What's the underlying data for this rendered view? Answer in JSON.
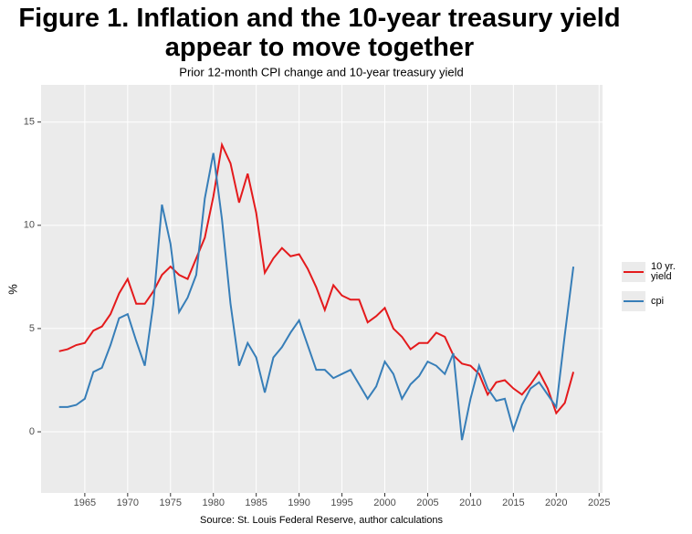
{
  "chart_data": {
    "type": "line",
    "title": "Figure 1. Inflation and the 10-year treasury yield\nappear to move together",
    "subtitle": "Prior 12-month CPI change and 10-year treasury yield",
    "y_label": "%",
    "caption": "Source: St. Louis Federal Reserve, author calculations",
    "x": [
      1962,
      1963,
      1964,
      1965,
      1966,
      1967,
      1968,
      1969,
      1970,
      1971,
      1972,
      1973,
      1974,
      1975,
      1976,
      1977,
      1978,
      1979,
      1980,
      1981,
      1982,
      1983,
      1984,
      1985,
      1986,
      1987,
      1988,
      1989,
      1990,
      1991,
      1992,
      1993,
      1994,
      1995,
      1996,
      1997,
      1998,
      1999,
      2000,
      2001,
      2002,
      2003,
      2004,
      2005,
      2006,
      2007,
      2008,
      2009,
      2010,
      2011,
      2012,
      2013,
      2014,
      2015,
      2016,
      2017,
      2018,
      2019,
      2020,
      2021,
      2022
    ],
    "series": [
      {
        "name": "10 yr.\nyield",
        "color": "#e41a1c",
        "values": [
          3.9,
          4.0,
          4.2,
          4.3,
          4.9,
          5.1,
          5.7,
          6.7,
          7.4,
          6.2,
          6.2,
          6.8,
          7.6,
          8.0,
          7.6,
          7.4,
          8.4,
          9.4,
          11.4,
          13.9,
          13.0,
          11.1,
          12.5,
          10.6,
          7.7,
          8.4,
          8.9,
          8.5,
          8.6,
          7.9,
          7.0,
          5.9,
          7.1,
          6.6,
          6.4,
          6.4,
          5.3,
          5.6,
          6.0,
          5.0,
          4.6,
          4.0,
          4.3,
          4.3,
          4.8,
          4.6,
          3.7,
          3.3,
          3.2,
          2.8,
          1.8,
          2.4,
          2.5,
          2.1,
          1.8,
          2.3,
          2.9,
          2.1,
          0.9,
          1.4,
          2.9
        ]
      },
      {
        "name": "cpi",
        "color": "#377eb8",
        "values": [
          1.2,
          1.2,
          1.3,
          1.6,
          2.9,
          3.1,
          4.2,
          5.5,
          5.7,
          4.4,
          3.2,
          6.2,
          11.0,
          9.1,
          5.8,
          6.5,
          7.6,
          11.3,
          13.5,
          10.3,
          6.2,
          3.2,
          4.3,
          3.6,
          1.9,
          3.6,
          4.1,
          4.8,
          5.4,
          4.2,
          3.0,
          3.0,
          2.6,
          2.8,
          3.0,
          2.3,
          1.6,
          2.2,
          3.4,
          2.8,
          1.6,
          2.3,
          2.7,
          3.4,
          3.2,
          2.8,
          3.8,
          -0.4,
          1.6,
          3.2,
          2.1,
          1.5,
          1.6,
          0.1,
          1.3,
          2.1,
          2.4,
          1.8,
          1.2,
          4.7,
          8.0
        ]
      }
    ],
    "xlim": [
      1959.9,
      2025.4
    ],
    "xticks": [
      1965,
      1970,
      1975,
      1980,
      1985,
      1990,
      1995,
      2000,
      2005,
      2010,
      2015,
      2020,
      2025
    ],
    "ylim": [
      -2.96,
      16.8
    ],
    "yticks": [
      0,
      5,
      10,
      15
    ],
    "grid": true,
    "legend": "right"
  }
}
